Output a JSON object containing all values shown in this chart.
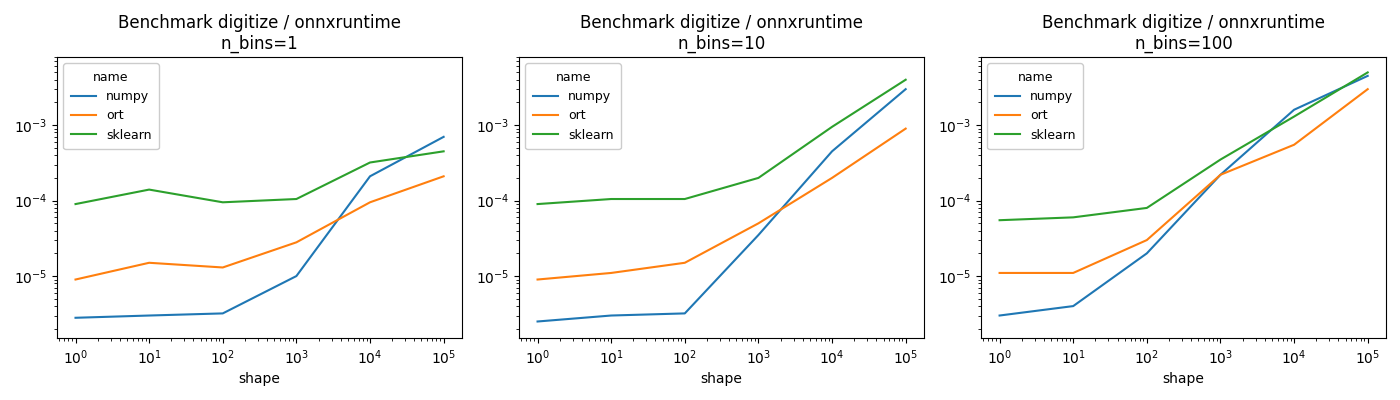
{
  "subplots": [
    {
      "title": "Benchmark digitize / onnxruntime\nn_bins=1",
      "xlabel": "shape",
      "x": [
        1,
        10,
        100,
        1000,
        10000,
        100000
      ],
      "series": {
        "numpy": [
          2.8e-06,
          3e-06,
          3.2e-06,
          1e-05,
          0.00021,
          0.0007
        ],
        "ort": [
          9e-06,
          1.5e-05,
          1.3e-05,
          2.8e-05,
          9.5e-05,
          0.00021
        ],
        "sklearn": [
          9e-05,
          0.00014,
          9.5e-05,
          0.000105,
          0.00032,
          0.00045
        ]
      }
    },
    {
      "title": "Benchmark digitize / onnxruntime\nn_bins=10",
      "xlabel": "shape",
      "x": [
        1,
        10,
        100,
        1000,
        10000,
        100000
      ],
      "series": {
        "numpy": [
          2.5e-06,
          3e-06,
          3.2e-06,
          3.5e-05,
          0.00045,
          0.003
        ],
        "ort": [
          9e-06,
          1.1e-05,
          1.5e-05,
          5e-05,
          0.0002,
          0.0009
        ],
        "sklearn": [
          9e-05,
          0.000105,
          0.000105,
          0.0002,
          0.00095,
          0.004
        ]
      }
    },
    {
      "title": "Benchmark digitize / onnxruntime\nn_bins=100",
      "xlabel": "shape",
      "x": [
        1,
        10,
        100,
        1000,
        10000,
        100000
      ],
      "series": {
        "numpy": [
          3e-06,
          4e-06,
          2e-05,
          0.00022,
          0.0016,
          0.0045
        ],
        "ort": [
          1.1e-05,
          1.1e-05,
          3e-05,
          0.00022,
          0.00055,
          0.003
        ],
        "sklearn": [
          5.5e-05,
          6e-05,
          8e-05,
          0.00035,
          0.0013,
          0.005
        ]
      }
    }
  ],
  "colors": {
    "numpy": "#1f77b4",
    "ort": "#ff7f0e",
    "sklearn": "#2ca02c"
  },
  "legend_title": "name",
  "series_order": [
    "numpy",
    "ort",
    "sklearn"
  ],
  "figsize": [
    14.0,
    4.0
  ],
  "dpi": 100
}
